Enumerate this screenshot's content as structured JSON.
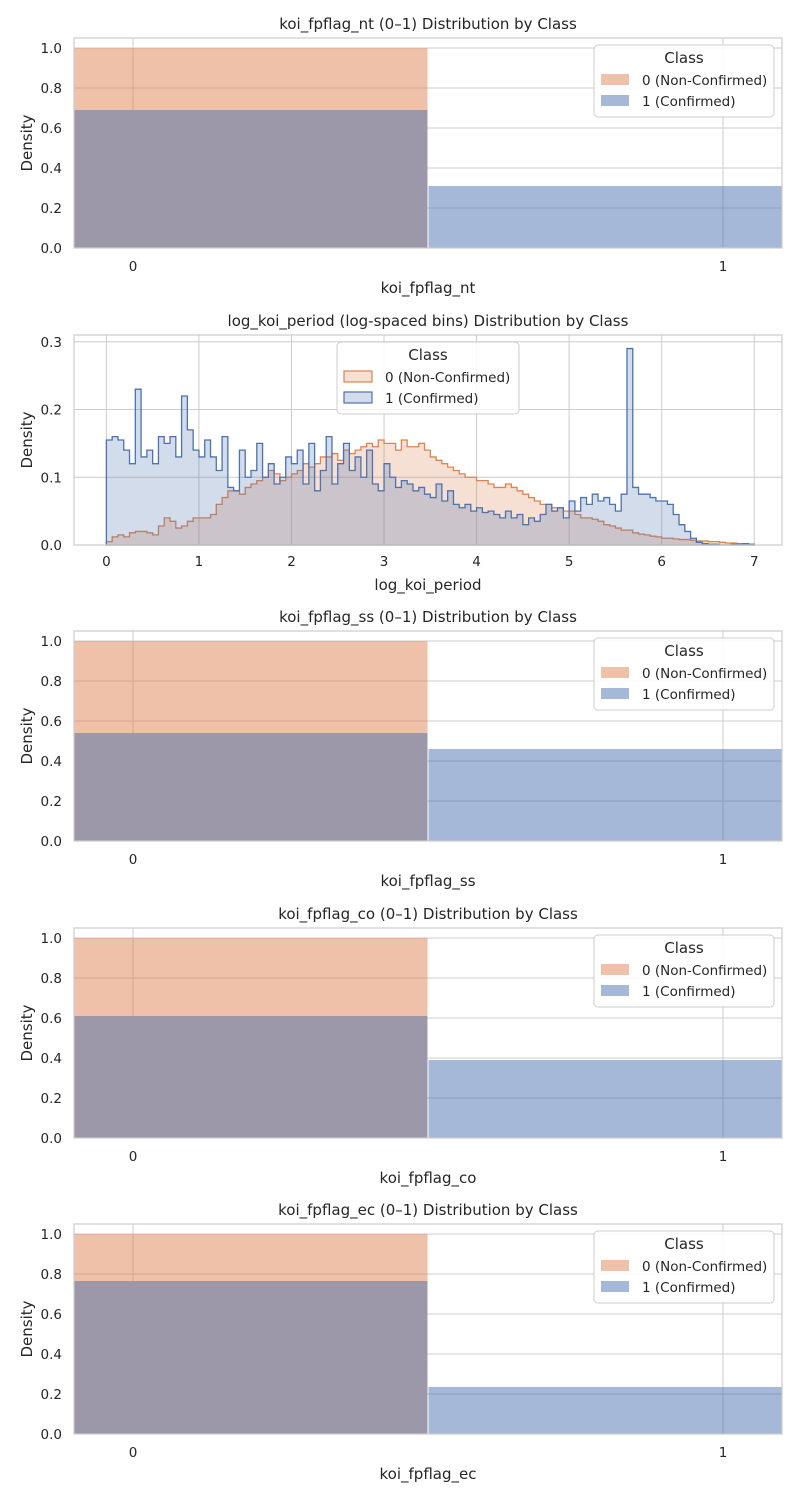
{
  "colors": {
    "class0": "#DD8452",
    "class1": "#4C72B0",
    "overlap": "#9C98A9",
    "grid": "#CCCCCC",
    "spine": "#CCCCCC"
  },
  "chart_data": [
    {
      "type": "bar",
      "title": "koi_fpflag_nt (0–1) Distribution by Class",
      "xlabel": "koi_fpflag_nt",
      "ylabel": "Density",
      "x_ticks": [
        "0",
        "1"
      ],
      "ylim": [
        0,
        1.05
      ],
      "y_ticks": [
        "0.0",
        "0.2",
        "0.4",
        "0.6",
        "0.8",
        "1.0"
      ],
      "legend": {
        "title": "Class",
        "position": "upper right",
        "entries": [
          "0 (Non-Confirmed)",
          "1 (Confirmed)"
        ]
      },
      "categories": [
        "0",
        "1"
      ],
      "series": [
        {
          "name": "0 (Non-Confirmed)",
          "values": [
            1.0,
            0.0
          ]
        },
        {
          "name": "1 (Confirmed)",
          "values": [
            0.69,
            0.31
          ]
        }
      ]
    },
    {
      "type": "area",
      "title": "log_koi_period (log-spaced bins) Distribution by Class",
      "xlabel": "log_koi_period",
      "ylabel": "Density",
      "xlim": [
        -0.35,
        7.3
      ],
      "ylim": [
        0,
        0.31
      ],
      "x_ticks": [
        "0",
        "1",
        "2",
        "3",
        "4",
        "5",
        "6",
        "7"
      ],
      "y_ticks": [
        "0.0",
        "0.1",
        "0.2",
        "0.3"
      ],
      "legend": {
        "title": "Class",
        "position": "upper center",
        "entries": [
          "0 (Non-Confirmed)",
          "1 (Confirmed)"
        ]
      },
      "bin_start": 0.0,
      "bin_width": 0.0625,
      "series": [
        {
          "name": "0 (Non-Confirmed)",
          "values": [
            0.005,
            0.012,
            0.015,
            0.012,
            0.018,
            0.02,
            0.02,
            0.018,
            0.015,
            0.028,
            0.04,
            0.035,
            0.025,
            0.028,
            0.035,
            0.04,
            0.04,
            0.04,
            0.045,
            0.06,
            0.07,
            0.08,
            0.08,
            0.075,
            0.085,
            0.09,
            0.095,
            0.1,
            0.11,
            0.105,
            0.095,
            0.1,
            0.105,
            0.11,
            0.12,
            0.115,
            0.12,
            0.13,
            0.13,
            0.135,
            0.125,
            0.14,
            0.135,
            0.14,
            0.145,
            0.15,
            0.145,
            0.155,
            0.15,
            0.15,
            0.14,
            0.155,
            0.145,
            0.145,
            0.15,
            0.14,
            0.13,
            0.125,
            0.12,
            0.115,
            0.11,
            0.105,
            0.1,
            0.1,
            0.095,
            0.095,
            0.09,
            0.085,
            0.085,
            0.09,
            0.085,
            0.08,
            0.075,
            0.07,
            0.065,
            0.06,
            0.06,
            0.055,
            0.055,
            0.05,
            0.05,
            0.045,
            0.04,
            0.04,
            0.038,
            0.035,
            0.03,
            0.028,
            0.025,
            0.022,
            0.022,
            0.018,
            0.016,
            0.015,
            0.013,
            0.012,
            0.01,
            0.01,
            0.009,
            0.008,
            0.008,
            0.007,
            0.006,
            0.006,
            0.005,
            0.005,
            0.004,
            0.003,
            0.003,
            0.002,
            0.002,
            0.001
          ]
        },
        {
          "name": "1 (Confirmed)",
          "values": [
            0.155,
            0.16,
            0.155,
            0.14,
            0.12,
            0.23,
            0.13,
            0.14,
            0.12,
            0.16,
            0.15,
            0.16,
            0.13,
            0.22,
            0.17,
            0.14,
            0.13,
            0.155,
            0.13,
            0.11,
            0.16,
            0.085,
            0.08,
            0.14,
            0.1,
            0.11,
            0.15,
            0.1,
            0.12,
            0.09,
            0.1,
            0.13,
            0.12,
            0.14,
            0.09,
            0.15,
            0.08,
            0.11,
            0.16,
            0.09,
            0.12,
            0.15,
            0.11,
            0.13,
            0.1,
            0.14,
            0.09,
            0.08,
            0.12,
            0.1,
            0.085,
            0.095,
            0.09,
            0.08,
            0.085,
            0.075,
            0.07,
            0.09,
            0.065,
            0.08,
            0.06,
            0.055,
            0.06,
            0.05,
            0.055,
            0.048,
            0.05,
            0.045,
            0.04,
            0.05,
            0.04,
            0.045,
            0.03,
            0.04,
            0.035,
            0.045,
            0.06,
            0.05,
            0.055,
            0.04,
            0.065,
            0.05,
            0.07,
            0.06,
            0.075,
            0.065,
            0.07,
            0.06,
            0.05,
            0.075,
            0.29,
            0.085,
            0.075,
            0.075,
            0.07,
            0.065,
            0.065,
            0.06,
            0.045,
            0.03,
            0.02,
            0.01,
            0.004,
            0.002,
            0.001,
            0.001,
            0.0,
            0.0,
            0.001,
            0.001,
            0.002,
            0.001
          ]
        }
      ]
    },
    {
      "type": "bar",
      "title": "koi_fpflag_ss (0–1) Distribution by Class",
      "xlabel": "koi_fpflag_ss",
      "ylabel": "Density",
      "x_ticks": [
        "0",
        "1"
      ],
      "ylim": [
        0,
        1.05
      ],
      "y_ticks": [
        "0.0",
        "0.2",
        "0.4",
        "0.6",
        "0.8",
        "1.0"
      ],
      "legend": {
        "title": "Class",
        "position": "upper right",
        "entries": [
          "0 (Non-Confirmed)",
          "1 (Confirmed)"
        ]
      },
      "categories": [
        "0",
        "1"
      ],
      "series": [
        {
          "name": "0 (Non-Confirmed)",
          "values": [
            1.0,
            0.0
          ]
        },
        {
          "name": "1 (Confirmed)",
          "values": [
            0.54,
            0.46
          ]
        }
      ]
    },
    {
      "type": "bar",
      "title": "koi_fpflag_co (0–1) Distribution by Class",
      "xlabel": "koi_fpflag_co",
      "ylabel": "Density",
      "x_ticks": [
        "0",
        "1"
      ],
      "ylim": [
        0,
        1.05
      ],
      "y_ticks": [
        "0.0",
        "0.2",
        "0.4",
        "0.6",
        "0.8",
        "1.0"
      ],
      "legend": {
        "title": "Class",
        "position": "upper right",
        "entries": [
          "0 (Non-Confirmed)",
          "1 (Confirmed)"
        ]
      },
      "categories": [
        "0",
        "1"
      ],
      "series": [
        {
          "name": "0 (Non-Confirmed)",
          "values": [
            1.0,
            0.0
          ]
        },
        {
          "name": "1 (Confirmed)",
          "values": [
            0.61,
            0.39
          ]
        }
      ]
    },
    {
      "type": "bar",
      "title": "koi_fpflag_ec (0–1) Distribution by Class",
      "xlabel": "koi_fpflag_ec",
      "ylabel": "Density",
      "x_ticks": [
        "0",
        "1"
      ],
      "ylim": [
        0,
        1.05
      ],
      "y_ticks": [
        "0.0",
        "0.2",
        "0.4",
        "0.6",
        "0.8",
        "1.0"
      ],
      "legend": {
        "title": "Class",
        "position": "upper right",
        "entries": [
          "0 (Non-Confirmed)",
          "1 (Confirmed)"
        ]
      },
      "categories": [
        "0",
        "1"
      ],
      "series": [
        {
          "name": "0 (Non-Confirmed)",
          "values": [
            1.0,
            0.0
          ]
        },
        {
          "name": "1 (Confirmed)",
          "values": [
            0.765,
            0.235
          ]
        }
      ]
    }
  ]
}
